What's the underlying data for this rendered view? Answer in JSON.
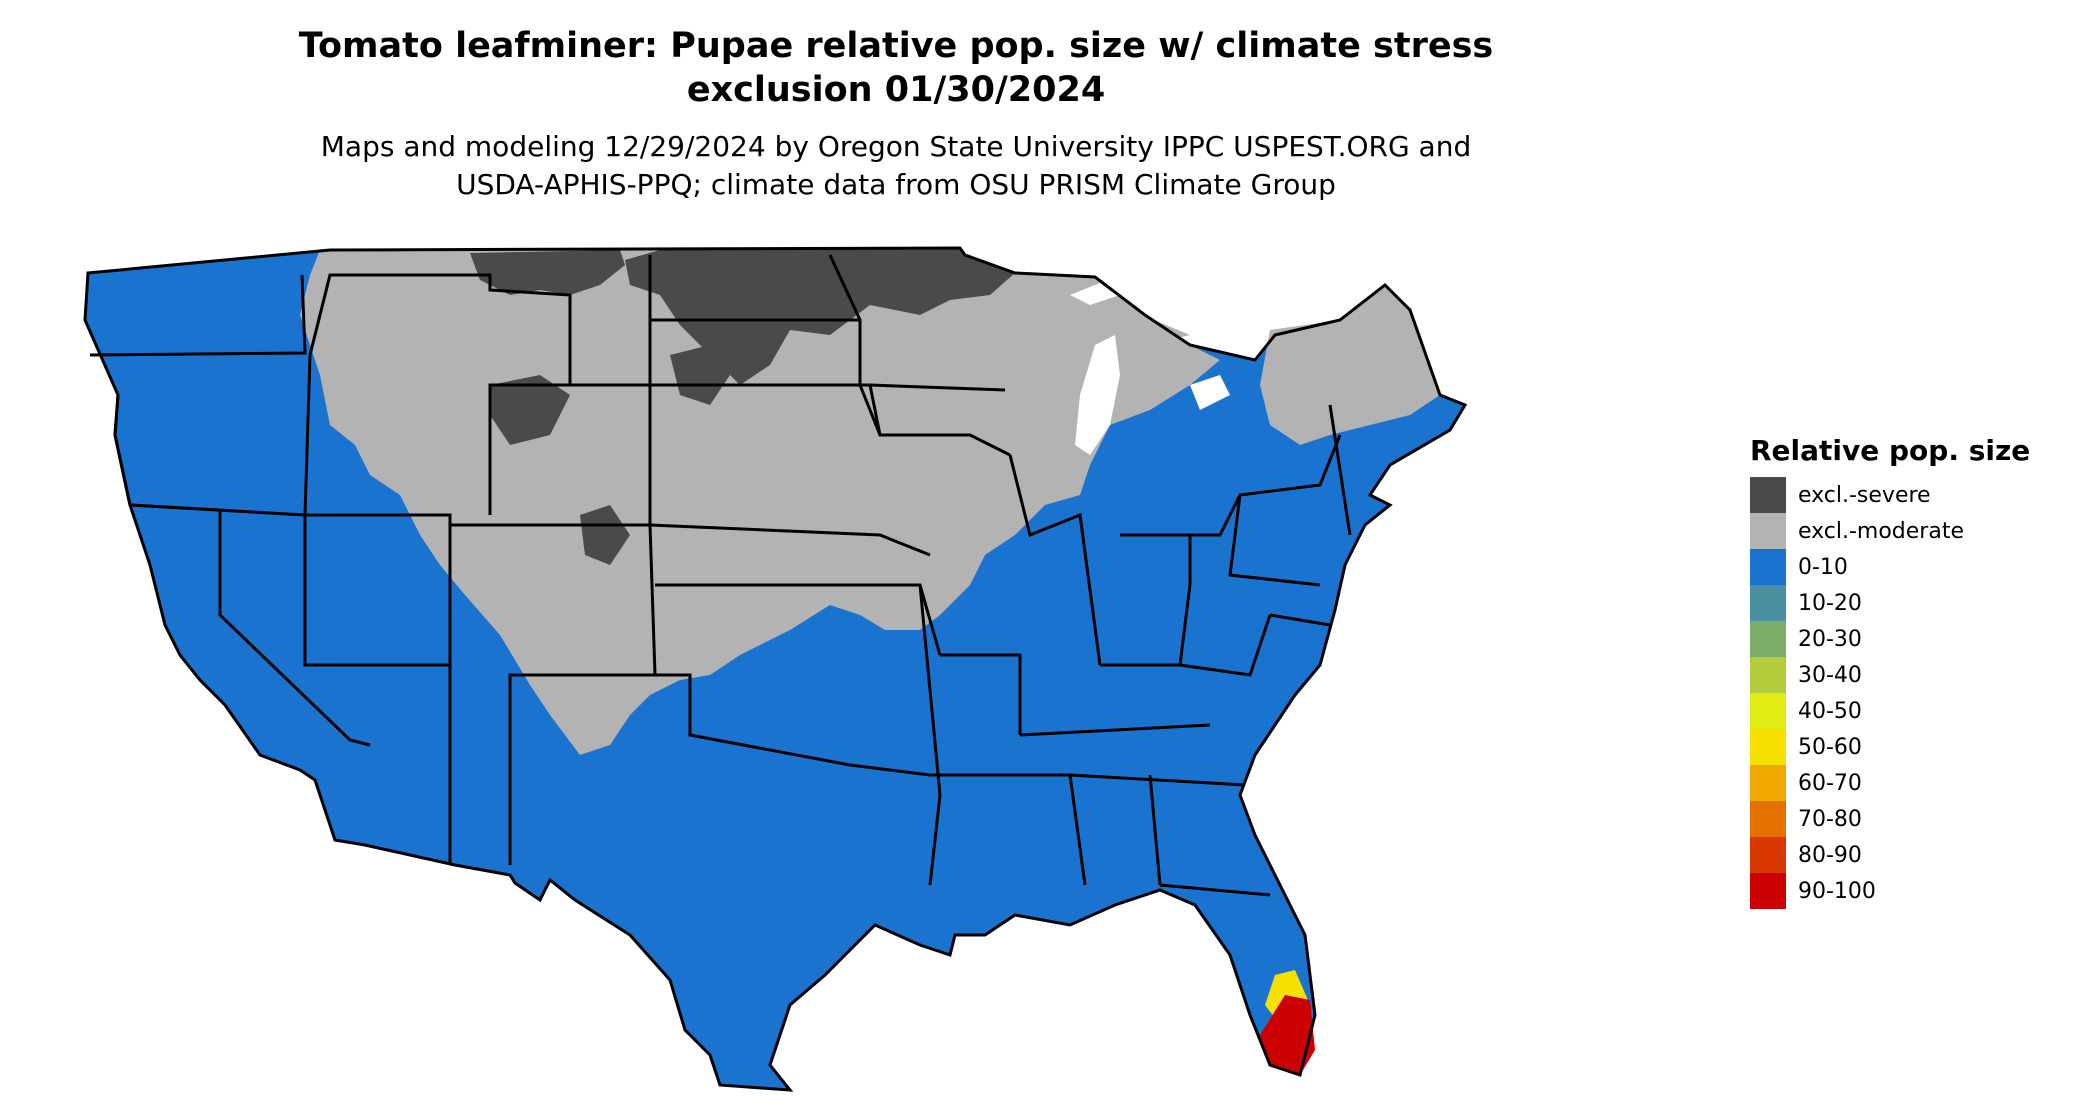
{
  "title_line1": "Tomato leafminer: Pupae relative pop. size w/ climate stress",
  "title_line2": "exclusion 01/30/2024",
  "subtitle_line1": "Maps and modeling 12/29/2024 by Oregon State University IPPC USPEST.ORG and",
  "subtitle_line2": "USDA-APHIS-PPQ; climate data from OSU PRISM Climate Group",
  "legend": {
    "title": "Relative pop. size",
    "items": [
      {
        "label": "excl.-severe",
        "color": "#4a4a4a"
      },
      {
        "label": "excl.-moderate",
        "color": "#b3b3b3"
      },
      {
        "label": "0-10",
        "color": "#1a73cf"
      },
      {
        "label": "10-20",
        "color": "#4a8fa0"
      },
      {
        "label": "20-30",
        "color": "#7aac6a"
      },
      {
        "label": "30-40",
        "color": "#b2cc3c"
      },
      {
        "label": "40-50",
        "color": "#e2ec14"
      },
      {
        "label": "50-60",
        "color": "#f6e000"
      },
      {
        "label": "60-70",
        "color": "#f0a800"
      },
      {
        "label": "70-80",
        "color": "#e47000"
      },
      {
        "label": "80-90",
        "color": "#d83800"
      },
      {
        "label": "90-100",
        "color": "#cc0000"
      }
    ]
  },
  "map": {
    "base_color": "#1a73cf",
    "moderate_color": "#b3b3b3",
    "severe_color": "#4a4a4a",
    "hot_colors": [
      "#cc0000",
      "#f6e000",
      "#7aac6a"
    ]
  }
}
